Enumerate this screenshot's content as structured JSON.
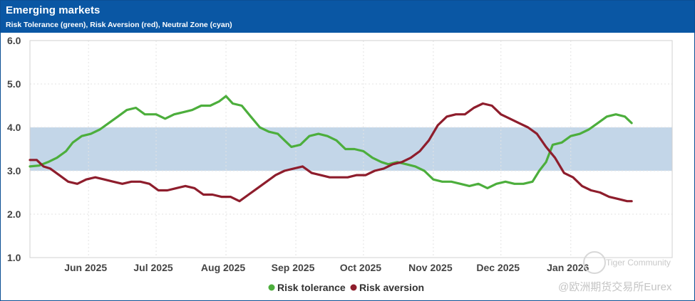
{
  "header": {
    "title": "Emerging markets",
    "subtitle": "Risk Tolerance (green), Risk Aversion (red), Neutral Zone (cyan)"
  },
  "watermark": {
    "line1": "Tiger Community",
    "line2": "@欧洲期货交易所Eurex"
  },
  "colors": {
    "header_bg": "#0a57a4",
    "green": "#4cae3c",
    "red": "#8e1d2c",
    "neutral_band": "#c3d6e8"
  },
  "chart_data": {
    "type": "line",
    "title": "Emerging markets",
    "subtitle": "Risk Tolerance (green), Risk Aversion (red), Neutral Zone (cyan)",
    "xlabel": "",
    "ylabel": "",
    "ylim": [
      1.0,
      6.0
    ],
    "yticks": [
      "1.0",
      "2.0",
      "3.0",
      "4.0",
      "5.0",
      "6.0"
    ],
    "x_tick_labels": [
      "Jun 2025",
      "Jul 2025",
      "Aug 2025",
      "Sep 2025",
      "Oct 2025",
      "Nov 2025",
      "Dec 2025",
      "Jan 2026"
    ],
    "xlim": [
      "2025-05-06",
      "2026-02-15"
    ],
    "grid": true,
    "legend_position": "bottom",
    "neutral_zone": [
      3.0,
      4.0
    ],
    "series": [
      {
        "name": "Risk tolerance",
        "color": "#4cae3c",
        "points": [
          [
            "2025-05-06",
            3.1
          ],
          [
            "2025-05-10",
            3.12
          ],
          [
            "2025-05-14",
            3.2
          ],
          [
            "2025-05-18",
            3.3
          ],
          [
            "2025-05-22",
            3.45
          ],
          [
            "2025-05-25",
            3.65
          ],
          [
            "2025-05-29",
            3.8
          ],
          [
            "2025-06-02",
            3.85
          ],
          [
            "2025-06-06",
            3.95
          ],
          [
            "2025-06-10",
            4.1
          ],
          [
            "2025-06-14",
            4.25
          ],
          [
            "2025-06-18",
            4.4
          ],
          [
            "2025-06-22",
            4.45
          ],
          [
            "2025-06-26",
            4.3
          ],
          [
            "2025-07-01",
            4.3
          ],
          [
            "2025-07-05",
            4.2
          ],
          [
            "2025-07-09",
            4.3
          ],
          [
            "2025-07-13",
            4.35
          ],
          [
            "2025-07-17",
            4.4
          ],
          [
            "2025-07-21",
            4.5
          ],
          [
            "2025-07-25",
            4.5
          ],
          [
            "2025-07-29",
            4.6
          ],
          [
            "2025-08-01",
            4.72
          ],
          [
            "2025-08-04",
            4.55
          ],
          [
            "2025-08-08",
            4.5
          ],
          [
            "2025-08-12",
            4.25
          ],
          [
            "2025-08-16",
            4.0
          ],
          [
            "2025-08-20",
            3.9
          ],
          [
            "2025-08-24",
            3.85
          ],
          [
            "2025-08-27",
            3.7
          ],
          [
            "2025-08-30",
            3.55
          ],
          [
            "2025-09-03",
            3.6
          ],
          [
            "2025-09-07",
            3.8
          ],
          [
            "2025-09-11",
            3.85
          ],
          [
            "2025-09-15",
            3.8
          ],
          [
            "2025-09-19",
            3.7
          ],
          [
            "2025-09-23",
            3.5
          ],
          [
            "2025-09-27",
            3.5
          ],
          [
            "2025-10-01",
            3.45
          ],
          [
            "2025-10-05",
            3.3
          ],
          [
            "2025-10-09",
            3.2
          ],
          [
            "2025-10-12",
            3.15
          ],
          [
            "2025-10-16",
            3.2
          ],
          [
            "2025-10-20",
            3.15
          ],
          [
            "2025-10-24",
            3.1
          ],
          [
            "2025-10-28",
            3.0
          ],
          [
            "2025-11-01",
            2.8
          ],
          [
            "2025-11-05",
            2.75
          ],
          [
            "2025-11-09",
            2.75
          ],
          [
            "2025-11-13",
            2.7
          ],
          [
            "2025-11-17",
            2.65
          ],
          [
            "2025-11-21",
            2.7
          ],
          [
            "2025-11-25",
            2.6
          ],
          [
            "2025-11-29",
            2.7
          ],
          [
            "2025-12-03",
            2.75
          ],
          [
            "2025-12-07",
            2.7
          ],
          [
            "2025-12-11",
            2.7
          ],
          [
            "2025-12-15",
            2.75
          ],
          [
            "2025-12-18",
            3.0
          ],
          [
            "2025-12-21",
            3.2
          ],
          [
            "2025-12-24",
            3.6
          ],
          [
            "2025-12-28",
            3.65
          ],
          [
            "2026-01-01",
            3.8
          ],
          [
            "2026-01-05",
            3.85
          ],
          [
            "2026-01-09",
            3.95
          ],
          [
            "2026-01-13",
            4.1
          ],
          [
            "2026-01-17",
            4.25
          ],
          [
            "2026-01-21",
            4.3
          ],
          [
            "2026-01-25",
            4.25
          ],
          [
            "2026-01-28",
            4.1
          ]
        ]
      },
      {
        "name": "Risk aversion",
        "color": "#8e1d2c",
        "points": [
          [
            "2025-05-06",
            3.25
          ],
          [
            "2025-05-09",
            3.25
          ],
          [
            "2025-05-12",
            3.1
          ],
          [
            "2025-05-15",
            3.05
          ],
          [
            "2025-05-19",
            2.9
          ],
          [
            "2025-05-23",
            2.75
          ],
          [
            "2025-05-27",
            2.7
          ],
          [
            "2025-05-31",
            2.8
          ],
          [
            "2025-06-04",
            2.85
          ],
          [
            "2025-06-08",
            2.8
          ],
          [
            "2025-06-12",
            2.75
          ],
          [
            "2025-06-16",
            2.7
          ],
          [
            "2025-06-20",
            2.75
          ],
          [
            "2025-06-24",
            2.75
          ],
          [
            "2025-06-28",
            2.7
          ],
          [
            "2025-07-02",
            2.55
          ],
          [
            "2025-07-06",
            2.55
          ],
          [
            "2025-07-10",
            2.6
          ],
          [
            "2025-07-14",
            2.65
          ],
          [
            "2025-07-18",
            2.6
          ],
          [
            "2025-07-22",
            2.45
          ],
          [
            "2025-07-26",
            2.45
          ],
          [
            "2025-07-30",
            2.4
          ],
          [
            "2025-08-03",
            2.4
          ],
          [
            "2025-08-07",
            2.3
          ],
          [
            "2025-08-11",
            2.45
          ],
          [
            "2025-08-15",
            2.6
          ],
          [
            "2025-08-19",
            2.75
          ],
          [
            "2025-08-23",
            2.9
          ],
          [
            "2025-08-27",
            3.0
          ],
          [
            "2025-08-31",
            3.05
          ],
          [
            "2025-09-04",
            3.1
          ],
          [
            "2025-09-08",
            2.95
          ],
          [
            "2025-09-12",
            2.9
          ],
          [
            "2025-09-16",
            2.85
          ],
          [
            "2025-09-20",
            2.85
          ],
          [
            "2025-09-24",
            2.85
          ],
          [
            "2025-09-28",
            2.9
          ],
          [
            "2025-10-02",
            2.9
          ],
          [
            "2025-10-06",
            3.0
          ],
          [
            "2025-10-10",
            3.05
          ],
          [
            "2025-10-14",
            3.15
          ],
          [
            "2025-10-18",
            3.2
          ],
          [
            "2025-10-22",
            3.3
          ],
          [
            "2025-10-26",
            3.45
          ],
          [
            "2025-10-30",
            3.7
          ],
          [
            "2025-11-03",
            4.05
          ],
          [
            "2025-11-07",
            4.25
          ],
          [
            "2025-11-11",
            4.3
          ],
          [
            "2025-11-15",
            4.3
          ],
          [
            "2025-11-19",
            4.45
          ],
          [
            "2025-11-23",
            4.55
          ],
          [
            "2025-11-27",
            4.5
          ],
          [
            "2025-12-01",
            4.3
          ],
          [
            "2025-12-05",
            4.2
          ],
          [
            "2025-12-09",
            4.1
          ],
          [
            "2025-12-13",
            4.0
          ],
          [
            "2025-12-17",
            3.85
          ],
          [
            "2025-12-21",
            3.55
          ],
          [
            "2025-12-25",
            3.3
          ],
          [
            "2025-12-29",
            2.95
          ],
          [
            "2026-01-02",
            2.85
          ],
          [
            "2026-01-06",
            2.65
          ],
          [
            "2026-01-10",
            2.55
          ],
          [
            "2026-01-14",
            2.5
          ],
          [
            "2026-01-18",
            2.4
          ],
          [
            "2026-01-22",
            2.35
          ],
          [
            "2026-01-26",
            2.3
          ],
          [
            "2026-01-28",
            2.3
          ]
        ]
      }
    ]
  }
}
